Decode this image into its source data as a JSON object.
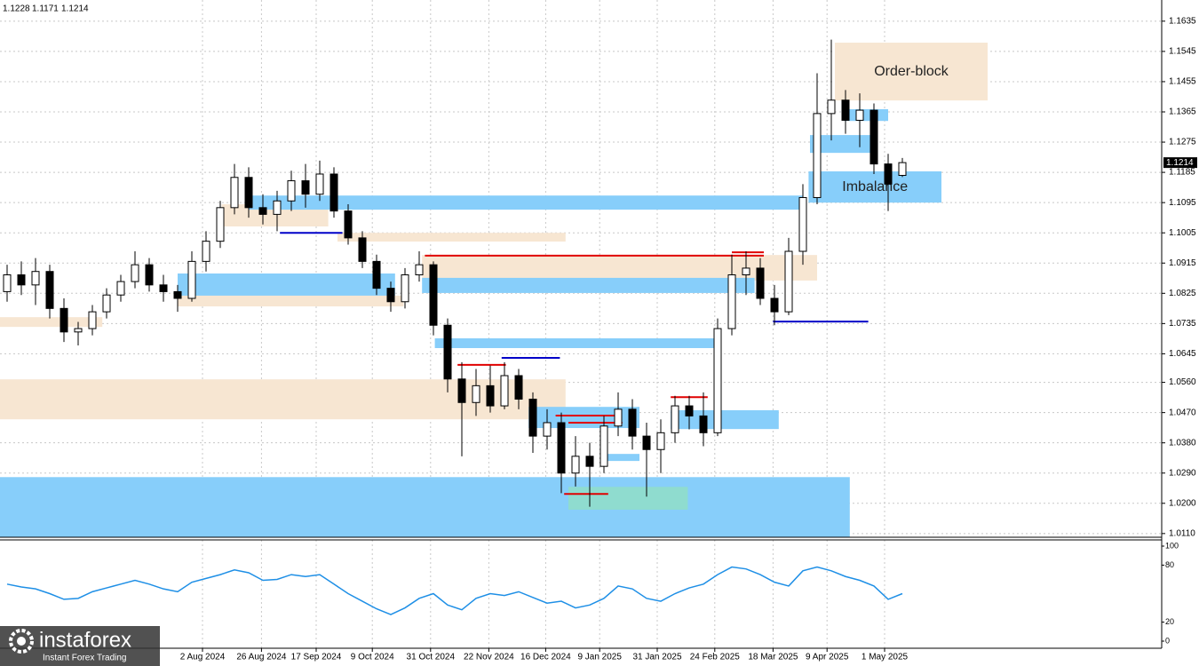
{
  "chart_data": {
    "type": "candlestick",
    "candles": [
      [
        1.083,
        1.091,
        1.08,
        1.088
      ],
      [
        1.088,
        1.092,
        1.082,
        1.085
      ],
      [
        1.085,
        1.093,
        1.079,
        1.089
      ],
      [
        1.089,
        1.091,
        1.075,
        1.078
      ],
      [
        1.078,
        1.081,
        1.068,
        1.071
      ],
      [
        1.071,
        1.074,
        1.067,
        1.072
      ],
      [
        1.072,
        1.079,
        1.07,
        1.077
      ],
      [
        1.077,
        1.084,
        1.075,
        1.082
      ],
      [
        1.082,
        1.088,
        1.08,
        1.086
      ],
      [
        1.086,
        1.095,
        1.084,
        1.091
      ],
      [
        1.091,
        1.093,
        1.083,
        1.085
      ],
      [
        1.085,
        1.088,
        1.08,
        1.083
      ],
      [
        1.083,
        1.085,
        1.077,
        1.081
      ],
      [
        1.081,
        1.095,
        1.08,
        1.092
      ],
      [
        1.092,
        1.101,
        1.089,
        1.098
      ],
      [
        1.098,
        1.11,
        1.096,
        1.108
      ],
      [
        1.108,
        1.121,
        1.106,
        1.117
      ],
      [
        1.117,
        1.12,
        1.105,
        1.108
      ],
      [
        1.108,
        1.112,
        1.103,
        1.106
      ],
      [
        1.106,
        1.113,
        1.101,
        1.11
      ],
      [
        1.11,
        1.119,
        1.107,
        1.116
      ],
      [
        1.116,
        1.121,
        1.108,
        1.112
      ],
      [
        1.112,
        1.122,
        1.11,
        1.118
      ],
      [
        1.118,
        1.12,
        1.105,
        1.107
      ],
      [
        1.107,
        1.109,
        1.097,
        1.099
      ],
      [
        1.099,
        1.101,
        1.09,
        1.092
      ],
      [
        1.092,
        1.094,
        1.082,
        1.084
      ],
      [
        1.084,
        1.086,
        1.077,
        1.08
      ],
      [
        1.08,
        1.09,
        1.078,
        1.088
      ],
      [
        1.088,
        1.095,
        1.086,
        1.091
      ],
      [
        1.091,
        1.092,
        1.07,
        1.073
      ],
      [
        1.073,
        1.075,
        1.053,
        1.057
      ],
      [
        1.057,
        1.062,
        1.034,
        1.05
      ],
      [
        1.05,
        1.06,
        1.046,
        1.055
      ],
      [
        1.055,
        1.061,
        1.047,
        1.049
      ],
      [
        1.049,
        1.062,
        1.048,
        1.058
      ],
      [
        1.058,
        1.06,
        1.048,
        1.051
      ],
      [
        1.051,
        1.053,
        1.035,
        1.04
      ],
      [
        1.04,
        1.048,
        1.036,
        1.044
      ],
      [
        1.044,
        1.047,
        1.023,
        1.029
      ],
      [
        1.029,
        1.04,
        1.025,
        1.034
      ],
      [
        1.034,
        1.038,
        1.019,
        1.031
      ],
      [
        1.031,
        1.046,
        1.029,
        1.043
      ],
      [
        1.043,
        1.053,
        1.04,
        1.048
      ],
      [
        1.048,
        1.051,
        1.036,
        1.04
      ],
      [
        1.04,
        1.044,
        1.022,
        1.036
      ],
      [
        1.036,
        1.045,
        1.029,
        1.041
      ],
      [
        1.041,
        1.052,
        1.038,
        1.049
      ],
      [
        1.049,
        1.052,
        1.042,
        1.046
      ],
      [
        1.046,
        1.053,
        1.037,
        1.041
      ],
      [
        1.041,
        1.075,
        1.04,
        1.072
      ],
      [
        1.072,
        1.094,
        1.07,
        1.088
      ],
      [
        1.088,
        1.095,
        1.082,
        1.09
      ],
      [
        1.09,
        1.093,
        1.079,
        1.081
      ],
      [
        1.081,
        1.085,
        1.073,
        1.077
      ],
      [
        1.077,
        1.099,
        1.076,
        1.095
      ],
      [
        1.095,
        1.115,
        1.091,
        1.111
      ],
      [
        1.111,
        1.148,
        1.109,
        1.136
      ],
      [
        1.136,
        1.158,
        1.128,
        1.14
      ],
      [
        1.14,
        1.143,
        1.13,
        1.134
      ],
      [
        1.134,
        1.142,
        1.126,
        1.137
      ],
      [
        1.137,
        1.139,
        1.118,
        1.121
      ],
      [
        1.121,
        1.124,
        1.107,
        1.115
      ],
      [
        1.1176,
        1.1228,
        1.1171,
        1.1214
      ]
    ],
    "ylim": [
      1.0099,
      1.1698
    ],
    "yticks": [
      1.1635,
      1.1545,
      1.1455,
      1.1365,
      1.1275,
      1.1185,
      1.1095,
      1.1005,
      1.0915,
      1.0825,
      1.0735,
      1.0645,
      {
        "value": 1.056,
        "label": "1.0560"
      },
      {
        "value": 1.047,
        "label": "1.0470"
      },
      {
        "value": 1.038,
        "label": "1.0380"
      },
      {
        "value": 1.029,
        "label": "1.0290"
      },
      {
        "value": 1.02,
        "label": "1.0200"
      },
      {
        "value": 1.011,
        "label": "1.0110"
      }
    ],
    "xlim": [
      -0.5,
      81.25
    ],
    "xticks": [
      {
        "value": 13.75,
        "label": "2 Aug 2024"
      },
      {
        "value": 17.9,
        "label": "26 Aug 2024"
      },
      {
        "value": 21.75,
        "label": "17 Sep 2024"
      },
      {
        "value": 25.7,
        "label": "9 Oct 2024"
      },
      {
        "value": 29.8,
        "label": "31 Oct 2024"
      },
      {
        "value": 33.9,
        "label": "22 Nov 2024"
      },
      {
        "value": 37.9,
        "label": "16 Dec 2024"
      },
      {
        "value": 41.7,
        "label": "9 Jan 2025"
      },
      {
        "value": 45.75,
        "label": "31 Jan 2025"
      },
      {
        "value": 49.8,
        "label": "24 Feb 2025"
      },
      {
        "value": 53.9,
        "label": "18 Mar 2025"
      },
      {
        "value": 57.7,
        "label": "9 Apr 2025"
      },
      {
        "value": 61.75,
        "label": "1 May 2025"
      }
    ],
    "grid": true,
    "zones": [
      {
        "start": -0.5,
        "end": 59.3,
        "top": 1.0278,
        "bottom": 1.0099,
        "color": "#87cefa"
      },
      {
        "start": -0.5,
        "end": 39.3,
        "top": 1.0569,
        "bottom": 1.045,
        "color": "#f7e6d2"
      },
      {
        "start": -0.5,
        "end": 6.7,
        "top": 1.0754,
        "bottom": 1.0725,
        "color": "#f7e6d2"
      },
      {
        "start": 12,
        "end": 27.3,
        "top": 1.0884,
        "bottom": 1.0818,
        "color": "#87cefa"
      },
      {
        "start": 12,
        "end": 27.9,
        "top": 1.0818,
        "bottom": 1.0786,
        "color": "#f7e6d2"
      },
      {
        "start": 15.1,
        "end": 22.6,
        "top": 1.109,
        "bottom": 1.1024,
        "color": "#f7e6d2"
      },
      {
        "start": 17,
        "end": 56,
        "top": 1.1116,
        "bottom": 1.1074,
        "color": "#87cefa"
      },
      {
        "start": 23.25,
        "end": 39.3,
        "top": 1.1005,
        "bottom": 1.0979,
        "color": "#f7e6d2"
      },
      {
        "start": 29.2,
        "end": 57,
        "top": 1.0939,
        "bottom": 1.0863,
        "color": "#f7e6d2"
      },
      {
        "start": 29.2,
        "end": 52.6,
        "top": 1.0871,
        "bottom": 1.0826,
        "color": "#87cefa"
      },
      {
        "start": 30.1,
        "end": 50.25,
        "top": 1.0691,
        "bottom": 1.0662,
        "color": "#87cefa"
      },
      {
        "start": 36.7,
        "end": 44.5,
        "top": 1.0487,
        "bottom": 1.0424,
        "color": "#87cefa"
      },
      {
        "start": 46.7,
        "end": 54.3,
        "top": 1.0477,
        "bottom": 1.0421,
        "color": "#87cefa"
      },
      {
        "start": 42,
        "end": 44.5,
        "top": 1.0347,
        "bottom": 1.0326,
        "color": "#87cefa"
      },
      {
        "start": 39.5,
        "end": 47.9,
        "top": 1.0249,
        "bottom": 1.0181,
        "color": "#8fdccf"
      },
      {
        "start": 58.25,
        "end": 69,
        "top": 1.1571,
        "bottom": 1.1399,
        "color": "#f7e6d2",
        "label": "Order-block"
      },
      {
        "start": 56.4,
        "end": 65.75,
        "top": 1.1188,
        "bottom": 1.1095,
        "color": "#87cefa",
        "label": "Imbalance"
      },
      {
        "start": 56.5,
        "end": 60.75,
        "top": 1.1296,
        "bottom": 1.1243,
        "color": "#87cefa"
      },
      {
        "start": 58.9,
        "end": 62,
        "top": 1.1373,
        "bottom": 1.1338,
        "color": "#87cefa"
      }
    ],
    "levels": [
      {
        "start": 29.4,
        "end": 53.25,
        "price": 1.0937,
        "color": "#e00000"
      },
      {
        "start": 51,
        "end": 53.25,
        "price": 1.0947,
        "color": "#e00000"
      },
      {
        "start": 53.9,
        "end": 60.6,
        "price": 1.0741,
        "color": "#0000c8"
      },
      {
        "start": 34.8,
        "end": 38.9,
        "price": 1.0633,
        "color": "#0000c8"
      },
      {
        "start": 31.7,
        "end": 35.1,
        "price": 1.0612,
        "color": "#e00000"
      },
      {
        "start": 38.6,
        "end": 43,
        "price": 1.0461,
        "color": "#e00000"
      },
      {
        "start": 39.5,
        "end": 43.3,
        "price": 1.044,
        "color": "#e00000"
      },
      {
        "start": 39.2,
        "end": 42.3,
        "price": 1.0228,
        "color": "#e00000"
      },
      {
        "start": 46.7,
        "end": 49.3,
        "price": 1.0516,
        "color": "#e00000"
      },
      {
        "start": 19.2,
        "end": 23.6,
        "price": 1.1005,
        "color": "#0000c8"
      }
    ],
    "indicator": {
      "values": [
        60,
        57,
        55,
        50,
        44,
        45,
        52,
        56,
        60,
        64,
        60,
        55,
        52,
        62,
        66,
        70,
        75,
        72,
        64,
        65,
        70,
        68,
        70,
        60,
        50,
        42,
        34,
        28,
        35,
        45,
        50,
        38,
        33,
        45,
        50,
        48,
        52,
        46,
        40,
        42,
        35,
        38,
        45,
        58,
        55,
        45,
        42,
        50,
        56,
        60,
        70,
        78,
        76,
        70,
        62,
        58,
        74,
        78,
        74,
        68,
        64,
        58,
        44,
        50
      ],
      "ylim": [
        0,
        100
      ],
      "yticks": [
        0,
        20,
        80,
        100
      ],
      "color": "#1e8fe6"
    }
  },
  "watermark": {
    "brand": "instaforex",
    "tagline": "Instant Forex Trading"
  }
}
